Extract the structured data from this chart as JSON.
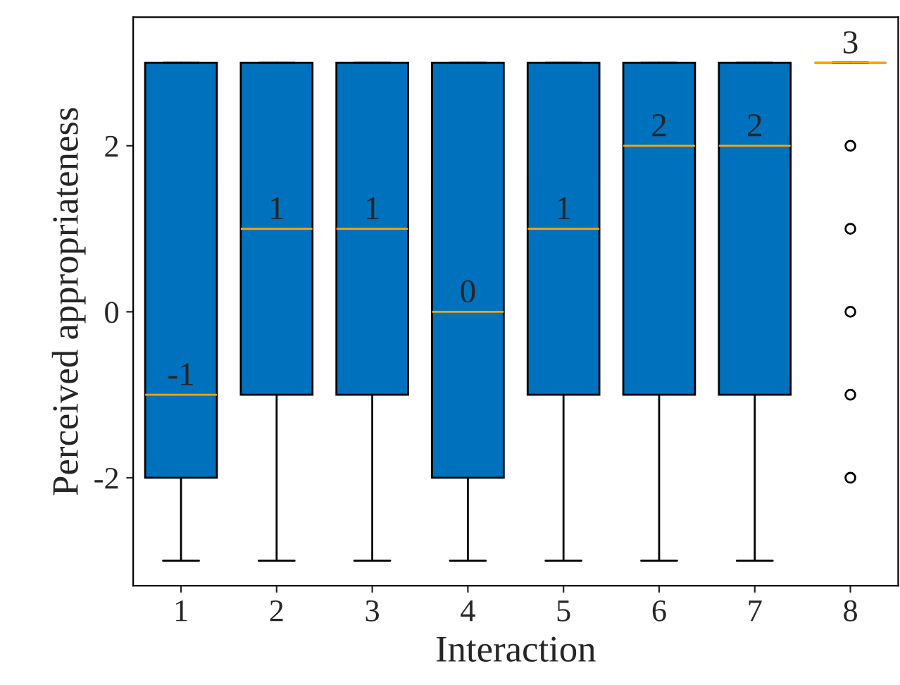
{
  "chart_data": {
    "type": "box",
    "xlabel": "Interaction",
    "ylabel": "Perceived appropriateness",
    "categories": [
      "1",
      "2",
      "3",
      "4",
      "5",
      "6",
      "7",
      "8"
    ],
    "color": "#0072bd",
    "boxes": [
      {
        "low": -3,
        "q1": -2,
        "median": -1,
        "q3": 3,
        "high": 3
      },
      {
        "low": -3,
        "q1": -1,
        "median": 1,
        "q3": 3,
        "high": 3
      },
      {
        "low": -3,
        "q1": -1,
        "median": 1,
        "q3": 3,
        "high": 3
      },
      {
        "low": -3,
        "q1": -2,
        "median": 0,
        "q3": 3,
        "high": 3
      },
      {
        "low": -3,
        "q1": -1,
        "median": 1,
        "q3": 3,
        "high": 3
      },
      {
        "low": -3,
        "q1": -1,
        "median": 2,
        "q3": 3,
        "high": 3
      },
      {
        "low": -3,
        "q1": -1,
        "median": 2,
        "q3": 3,
        "high": 3
      },
      {
        "low": 3,
        "q1": 3,
        "median": 3,
        "q3": 3,
        "high": 3,
        "outliers": [
          2,
          1,
          0,
          -1,
          -2
        ]
      }
    ],
    "annotations": [
      {
        "text": "-1",
        "x": "1",
        "y": -1
      },
      {
        "text": "1",
        "x": "2",
        "y": 1
      },
      {
        "text": "1",
        "x": "3",
        "y": 1
      },
      {
        "text": "0",
        "x": "4",
        "y": 0
      },
      {
        "text": "1",
        "x": "5",
        "y": 1
      },
      {
        "text": "2",
        "x": "6",
        "y": 2
      },
      {
        "text": "2",
        "x": "7",
        "y": 2
      },
      {
        "text": "3",
        "x": "8",
        "y": 3
      }
    ],
    "ylim": [
      -3.3,
      3.55
    ],
    "yticks": [
      -2,
      0,
      2
    ],
    "grid": false,
    "legend": false
  }
}
